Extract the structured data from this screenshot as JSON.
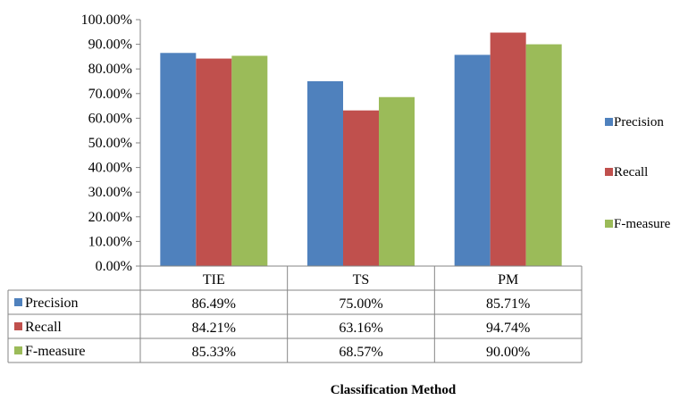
{
  "chart_data": {
    "type": "bar",
    "categories": [
      "TIE",
      "TS",
      "PM"
    ],
    "series": [
      {
        "name": "Precision",
        "values": [
          86.49,
          75.0,
          85.71
        ],
        "color": "#4F81BD",
        "labels": [
          "86.49%",
          "75.00%",
          "85.71%"
        ]
      },
      {
        "name": "Recall",
        "values": [
          84.21,
          63.16,
          94.74
        ],
        "color": "#C0504D",
        "labels": [
          "84.21%",
          "63.16%",
          "94.74%"
        ]
      },
      {
        "name": "F-measure",
        "values": [
          85.33,
          68.57,
          90.0
        ],
        "color": "#9BBB59",
        "labels": [
          "85.33%",
          "68.57%",
          "90.00%"
        ]
      }
    ],
    "y_ticks": [
      "0.00%",
      "10.00%",
      "20.00%",
      "30.00%",
      "40.00%",
      "50.00%",
      "60.00%",
      "70.00%",
      "80.00%",
      "90.00%",
      "100.00%"
    ],
    "ylim": [
      0,
      100
    ],
    "xlabel": "Classification Method",
    "legend_position": "right",
    "data_table": true,
    "grid": false
  }
}
